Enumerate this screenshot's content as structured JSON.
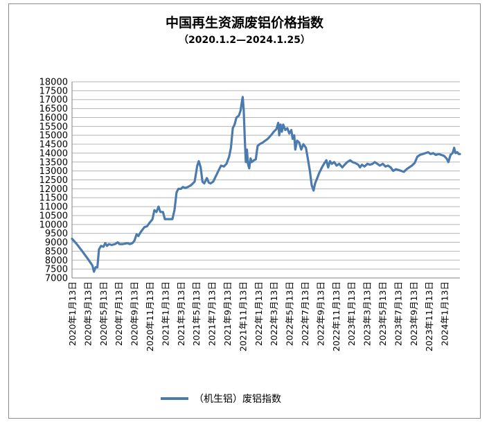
{
  "chart_data": {
    "type": "line",
    "title": "中国再生资源废铝价格指数",
    "subtitle": "（2020.1.2—2024.1.25）",
    "series_color": "#4a7aae",
    "grid": true,
    "ylim": [
      7000,
      18000
    ],
    "y_ticks": [
      "7000",
      "7500",
      "8000",
      "8500",
      "9000",
      "9500",
      "10000",
      "10500",
      "11000",
      "11500",
      "12000",
      "12500",
      "13000",
      "13500",
      "14000",
      "14500",
      "15000",
      "15500",
      "16000",
      "16500",
      "17000",
      "17500",
      "18000"
    ],
    "x_ticks": [
      "2020年1月13日",
      "2020年3月13日",
      "2020年5月13日",
      "2020年7月13日",
      "2020年9月13日",
      "2020年11月13日",
      "2021年1月13日",
      "2021年3月13日",
      "2021年5月13日",
      "2021年7月13日",
      "2021年9月13日",
      "2021年11月13日",
      "2022年1月13日",
      "2022年3月13日",
      "2022年5月13日",
      "2022年7月13日",
      "2022年9月13日",
      "2022年11月13日",
      "2023年1月13日",
      "2023年3月13日",
      "2023年5月13日",
      "2023年7月13日",
      "2023年9月13日",
      "2023年11月13日",
      "2024年1月13日"
    ],
    "x_range": [
      "2020-01-02",
      "2024-01-25"
    ],
    "legend_position": "bottom",
    "series": [
      {
        "name": "（机生铝）废铝指数",
        "points": [
          [
            "2020-01-02",
            9200
          ],
          [
            "2020-01-20",
            8900
          ],
          [
            "2020-02-10",
            8500
          ],
          [
            "2020-03-01",
            8100
          ],
          [
            "2020-03-20",
            7700
          ],
          [
            "2020-03-26",
            7350
          ],
          [
            "2020-04-01",
            7600
          ],
          [
            "2020-04-08",
            7600
          ],
          [
            "2020-04-14",
            8600
          ],
          [
            "2020-04-22",
            8800
          ],
          [
            "2020-05-01",
            8750
          ],
          [
            "2020-05-08",
            8950
          ],
          [
            "2020-05-15",
            8800
          ],
          [
            "2020-05-22",
            8900
          ],
          [
            "2020-06-01",
            8850
          ],
          [
            "2020-06-15",
            8900
          ],
          [
            "2020-06-25",
            9000
          ],
          [
            "2020-07-01",
            8900
          ],
          [
            "2020-07-15",
            8900
          ],
          [
            "2020-08-01",
            8950
          ],
          [
            "2020-08-10",
            8900
          ],
          [
            "2020-08-20",
            8950
          ],
          [
            "2020-08-28",
            9100
          ],
          [
            "2020-09-05",
            9450
          ],
          [
            "2020-09-12",
            9350
          ],
          [
            "2020-09-22",
            9600
          ],
          [
            "2020-10-05",
            9850
          ],
          [
            "2020-10-15",
            9900
          ],
          [
            "2020-10-25",
            10100
          ],
          [
            "2020-11-05",
            10300
          ],
          [
            "2020-11-12",
            10800
          ],
          [
            "2020-11-20",
            10700
          ],
          [
            "2020-11-28",
            11000
          ],
          [
            "2020-12-05",
            10700
          ],
          [
            "2020-12-15",
            10700
          ],
          [
            "2020-12-22",
            10300
          ],
          [
            "2021-01-05",
            10300
          ],
          [
            "2021-01-20",
            10300
          ],
          [
            "2021-01-28",
            10800
          ],
          [
            "2021-02-05",
            11800
          ],
          [
            "2021-02-12",
            12000
          ],
          [
            "2021-02-22",
            12000
          ],
          [
            "2021-03-01",
            12100
          ],
          [
            "2021-03-10",
            12050
          ],
          [
            "2021-03-20",
            12100
          ],
          [
            "2021-04-01",
            12200
          ],
          [
            "2021-04-15",
            12400
          ],
          [
            "2021-04-25",
            13300
          ],
          [
            "2021-05-01",
            13550
          ],
          [
            "2021-05-08",
            13200
          ],
          [
            "2021-05-15",
            12400
          ],
          [
            "2021-05-22",
            12300
          ],
          [
            "2021-06-01",
            12600
          ],
          [
            "2021-06-08",
            12350
          ],
          [
            "2021-06-15",
            12300
          ],
          [
            "2021-06-25",
            12400
          ],
          [
            "2021-07-05",
            12700
          ],
          [
            "2021-07-15",
            13000
          ],
          [
            "2021-07-25",
            13300
          ],
          [
            "2021-08-05",
            13250
          ],
          [
            "2021-08-15",
            13400
          ],
          [
            "2021-08-25",
            13800
          ],
          [
            "2021-09-01",
            14300
          ],
          [
            "2021-09-08",
            15400
          ],
          [
            "2021-09-15",
            15600
          ],
          [
            "2021-09-22",
            16000
          ],
          [
            "2021-10-01",
            16100
          ],
          [
            "2021-10-08",
            16400
          ],
          [
            "2021-10-12",
            16800
          ],
          [
            "2021-10-16",
            17150
          ],
          [
            "2021-10-20",
            16400
          ],
          [
            "2021-10-24",
            14800
          ],
          [
            "2021-10-28",
            13500
          ],
          [
            "2021-11-01",
            14200
          ],
          [
            "2021-11-05",
            13400
          ],
          [
            "2021-11-10",
            13150
          ],
          [
            "2021-11-15",
            13700
          ],
          [
            "2021-11-20",
            13500
          ],
          [
            "2021-11-28",
            13600
          ],
          [
            "2021-12-05",
            13650
          ],
          [
            "2021-12-12",
            14400
          ],
          [
            "2021-12-20",
            14500
          ],
          [
            "2022-01-01",
            14600
          ],
          [
            "2022-01-10",
            14700
          ],
          [
            "2022-01-20",
            14800
          ],
          [
            "2022-02-01",
            15000
          ],
          [
            "2022-02-12",
            15200
          ],
          [
            "2022-02-22",
            15350
          ],
          [
            "2022-03-01",
            15700
          ],
          [
            "2022-03-05",
            15000
          ],
          [
            "2022-03-10",
            15600
          ],
          [
            "2022-03-15",
            15200
          ],
          [
            "2022-03-20",
            15600
          ],
          [
            "2022-03-28",
            15300
          ],
          [
            "2022-04-05",
            15400
          ],
          [
            "2022-04-12",
            15100
          ],
          [
            "2022-04-20",
            15300
          ],
          [
            "2022-04-25",
            14800
          ],
          [
            "2022-05-01",
            15000
          ],
          [
            "2022-05-05",
            14200
          ],
          [
            "2022-05-12",
            14700
          ],
          [
            "2022-05-20",
            14600
          ],
          [
            "2022-05-28",
            14200
          ],
          [
            "2022-06-05",
            14500
          ],
          [
            "2022-06-15",
            14300
          ],
          [
            "2022-06-22",
            13700
          ],
          [
            "2022-06-30",
            13000
          ],
          [
            "2022-07-07",
            12200
          ],
          [
            "2022-07-14",
            11900
          ],
          [
            "2022-07-20",
            12300
          ],
          [
            "2022-07-28",
            12600
          ],
          [
            "2022-08-05",
            12900
          ],
          [
            "2022-08-15",
            13200
          ],
          [
            "2022-08-25",
            13450
          ],
          [
            "2022-09-01",
            13600
          ],
          [
            "2022-09-08",
            13200
          ],
          [
            "2022-09-15",
            13550
          ],
          [
            "2022-09-22",
            13400
          ],
          [
            "2022-10-01",
            13500
          ],
          [
            "2022-10-10",
            13300
          ],
          [
            "2022-10-20",
            13400
          ],
          [
            "2022-11-01",
            13200
          ],
          [
            "2022-11-10",
            13350
          ],
          [
            "2022-11-20",
            13500
          ],
          [
            "2022-12-01",
            13600
          ],
          [
            "2022-12-10",
            13500
          ],
          [
            "2022-12-20",
            13450
          ],
          [
            "2023-01-01",
            13350
          ],
          [
            "2023-01-08",
            13200
          ],
          [
            "2023-01-15",
            13350
          ],
          [
            "2023-01-25",
            13250
          ],
          [
            "2023-02-05",
            13400
          ],
          [
            "2023-02-15",
            13350
          ],
          [
            "2023-02-25",
            13400
          ],
          [
            "2023-03-05",
            13500
          ],
          [
            "2023-03-15",
            13400
          ],
          [
            "2023-03-25",
            13300
          ],
          [
            "2023-04-05",
            13400
          ],
          [
            "2023-04-15",
            13250
          ],
          [
            "2023-04-25",
            13300
          ],
          [
            "2023-05-05",
            13200
          ],
          [
            "2023-05-15",
            13000
          ],
          [
            "2023-05-25",
            13100
          ],
          [
            "2023-06-05",
            13050
          ],
          [
            "2023-06-15",
            13000
          ],
          [
            "2023-06-25",
            12950
          ],
          [
            "2023-07-05",
            13100
          ],
          [
            "2023-07-15",
            13200
          ],
          [
            "2023-07-25",
            13300
          ],
          [
            "2023-08-05",
            13450
          ],
          [
            "2023-08-15",
            13800
          ],
          [
            "2023-08-25",
            13900
          ],
          [
            "2023-09-05",
            13950
          ],
          [
            "2023-09-15",
            14000
          ],
          [
            "2023-09-25",
            14050
          ],
          [
            "2023-10-05",
            13950
          ],
          [
            "2023-10-15",
            14000
          ],
          [
            "2023-10-25",
            13900
          ],
          [
            "2023-11-05",
            13950
          ],
          [
            "2023-11-15",
            13900
          ],
          [
            "2023-11-25",
            13850
          ],
          [
            "2023-12-05",
            13700
          ],
          [
            "2023-12-12",
            13500
          ],
          [
            "2023-12-20",
            13900
          ],
          [
            "2023-12-28",
            14000
          ],
          [
            "2024-01-03",
            14300
          ],
          [
            "2024-01-08",
            14000
          ],
          [
            "2024-01-15",
            14050
          ],
          [
            "2024-01-20",
            13950
          ],
          [
            "2024-01-25",
            13950
          ]
        ]
      }
    ]
  }
}
